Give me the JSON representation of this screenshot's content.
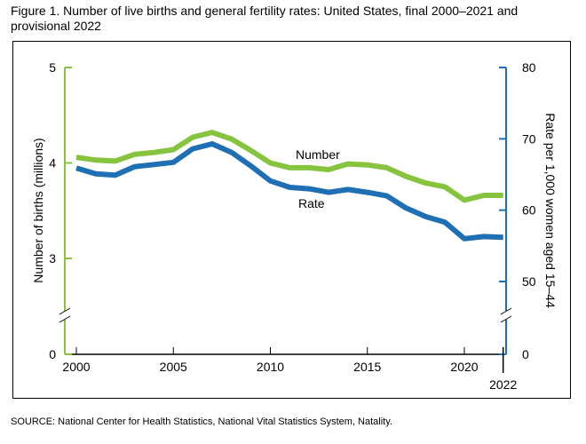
{
  "figure": {
    "title": "Figure 1. Number of live births and general fertility rates: United States, final 2000–2021 and provisional 2022",
    "source": "SOURCE: National Center for Health Statistics, National Vital Statistics System, Natality."
  },
  "colors": {
    "number": "#86c440",
    "rate": "#1f6fb5",
    "left_axis": "#86c440",
    "right_axis": "#1f6fb5"
  },
  "chart_data": {
    "type": "line",
    "title": "Figure 1. Number of live births and general fertility rates: United States, final 2000–2021 and provisional 2022",
    "x": [
      2000,
      2001,
      2002,
      2003,
      2004,
      2005,
      2006,
      2007,
      2008,
      2009,
      2010,
      2011,
      2012,
      2013,
      2014,
      2015,
      2016,
      2017,
      2018,
      2019,
      2020,
      2021,
      2022
    ],
    "xticks": [
      "2000",
      "2005",
      "2010",
      "2015",
      "2020"
    ],
    "x_extra_label": "2022",
    "left_axis": {
      "label": "Number of births (millions)",
      "ticks": [
        "0",
        "3",
        "4",
        "5"
      ],
      "ylim": [
        0,
        5
      ],
      "break_between": [
        0,
        3
      ]
    },
    "right_axis": {
      "label": "Rate per 1,000 women aged 15–44",
      "ticks": [
        "0",
        "50",
        "60",
        "70",
        "80"
      ],
      "ylim": [
        0,
        80
      ],
      "break_between": [
        0,
        50
      ]
    },
    "series": [
      {
        "name": "Number",
        "axis": "left",
        "values": [
          4.06,
          4.03,
          4.02,
          4.09,
          4.11,
          4.14,
          4.27,
          4.32,
          4.25,
          4.13,
          4.0,
          3.95,
          3.95,
          3.93,
          3.99,
          3.98,
          3.95,
          3.86,
          3.79,
          3.75,
          3.61,
          3.66,
          3.66
        ]
      },
      {
        "name": "Rate",
        "axis": "right",
        "values": [
          65.9,
          65.1,
          64.9,
          66.1,
          66.4,
          66.7,
          68.6,
          69.3,
          68.1,
          66.2,
          64.1,
          63.2,
          63.0,
          62.5,
          62.9,
          62.5,
          62.0,
          60.3,
          59.1,
          58.3,
          56.0,
          56.3,
          56.2
        ]
      }
    ],
    "grid": false
  }
}
